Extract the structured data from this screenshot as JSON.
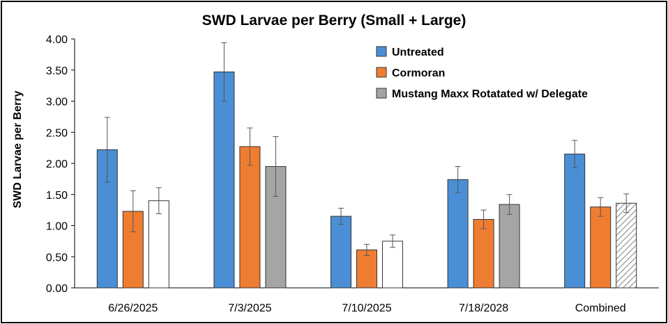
{
  "chart_data": {
    "type": "bar",
    "title": "SWD Larvae per Berry (Small + Large)",
    "xlabel": "",
    "ylabel": "SWD Larvae per Berry",
    "ylim": [
      0,
      4
    ],
    "yticks": [
      "0.00",
      "0.50",
      "1.00",
      "1.50",
      "2.00",
      "2.50",
      "3.00",
      "3.50",
      "4.00"
    ],
    "categories": [
      "6/26/2025",
      "7/3/2025",
      "7/10/2025",
      "7/18/2028",
      "Combined"
    ],
    "legend_position": "top-right",
    "grid": false,
    "series": [
      {
        "name": "Untreated",
        "color": "#4a8fd6",
        "values": [
          2.22,
          3.47,
          1.15,
          1.74,
          2.15
        ],
        "errors": [
          0.52,
          0.47,
          0.13,
          0.21,
          0.22
        ]
      },
      {
        "name": "Cormoran",
        "color": "#ef7d31",
        "values": [
          1.23,
          2.27,
          0.61,
          1.1,
          1.3
        ],
        "errors": [
          0.33,
          0.3,
          0.09,
          0.15,
          0.15
        ]
      },
      {
        "name": "Mustang Maxx Rotatated w/ Delegate",
        "color": "#a5a5a5",
        "values": [
          1.4,
          1.95,
          0.75,
          1.34,
          1.36
        ],
        "errors": [
          0.21,
          0.48,
          0.1,
          0.16,
          0.15
        ],
        "fill_styles": [
          "white",
          "solid",
          "white",
          "solid",
          "hatched"
        ]
      }
    ]
  }
}
